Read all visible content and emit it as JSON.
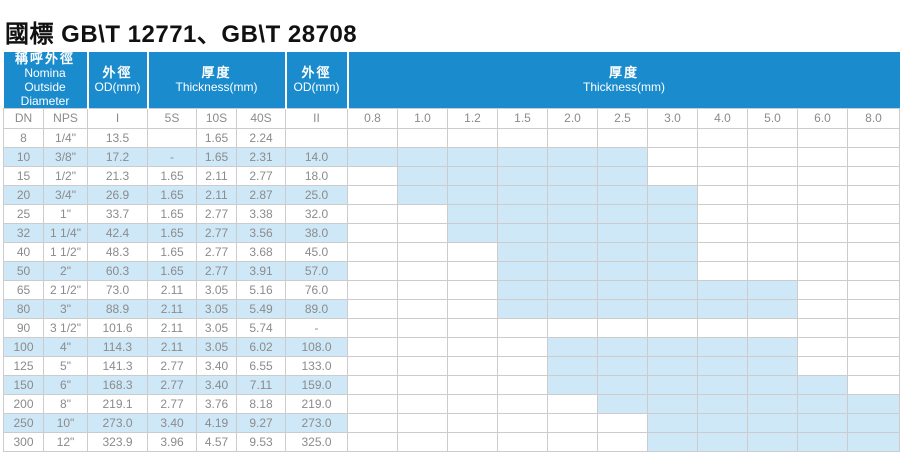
{
  "title": "國標 GB\\T 12771、GB\\T 28708",
  "colors": {
    "header_blue": "#1a8ccd",
    "shade_blue": "#cfe8f7",
    "text_gray": "#8b8b8b",
    "border_gray": "#cccccc"
  },
  "table": {
    "header_groups": [
      {
        "zh": "稱呼外徑",
        "en": "Nomina",
        "en2": "Outside Diameter"
      },
      {
        "zh": "外徑",
        "en": "OD(mm)",
        "en2": ""
      },
      {
        "zh": "厚度",
        "en": "Thickness(mm)",
        "en2": ""
      },
      {
        "zh": "外徑",
        "en": "OD(mm)",
        "en2": ""
      },
      {
        "zh": "厚度",
        "en": "Thickness(mm)",
        "en2": ""
      }
    ],
    "sub_headers": [
      "DN",
      "NPS",
      "I",
      "5S",
      "10S",
      "40S",
      "II"
    ],
    "thickness_headers": [
      "0.8",
      "1.0",
      "1.2",
      "1.5",
      "2.0",
      "2.5",
      "3.0",
      "4.0",
      "5.0",
      "6.0",
      "8.0"
    ],
    "rows": [
      {
        "dn": "8",
        "nps": "1/4\"",
        "od_i": "13.5",
        "s5": "",
        "s10": "1.65",
        "s40": "2.24",
        "od_ii": "",
        "shade": null
      },
      {
        "dn": "10",
        "nps": "3/8\"",
        "od_i": "17.2",
        "s5": "-",
        "s10": "1.65",
        "s40": "2.31",
        "od_ii": "14.0",
        "shade": [
          "0.8",
          "2.5"
        ]
      },
      {
        "dn": "15",
        "nps": "1/2\"",
        "od_i": "21.3",
        "s5": "1.65",
        "s10": "2.11",
        "s40": "2.77",
        "od_ii": "18.0",
        "shade": [
          "1.0",
          "2.5"
        ]
      },
      {
        "dn": "20",
        "nps": "3/4\"",
        "od_i": "26.9",
        "s5": "1.65",
        "s10": "2.11",
        "s40": "2.87",
        "od_ii": "25.0",
        "shade": [
          "1.0",
          "3.0"
        ]
      },
      {
        "dn": "25",
        "nps": "1\"",
        "od_i": "33.7",
        "s5": "1.65",
        "s10": "2.77",
        "s40": "3.38",
        "od_ii": "32.0",
        "shade": [
          "1.2",
          "3.0"
        ]
      },
      {
        "dn": "32",
        "nps": "1 1/4\"",
        "od_i": "42.4",
        "s5": "1.65",
        "s10": "2.77",
        "s40": "3.56",
        "od_ii": "38.0",
        "shade": [
          "1.2",
          "3.0"
        ]
      },
      {
        "dn": "40",
        "nps": "1 1/2\"",
        "od_i": "48.3",
        "s5": "1.65",
        "s10": "2.77",
        "s40": "3.68",
        "od_ii": "45.0",
        "shade": [
          "1.5",
          "3.0"
        ]
      },
      {
        "dn": "50",
        "nps": "2\"",
        "od_i": "60.3",
        "s5": "1.65",
        "s10": "2.77",
        "s40": "3.91",
        "od_ii": "57.0",
        "shade": [
          "1.5",
          "3.0"
        ]
      },
      {
        "dn": "65",
        "nps": "2 1/2\"",
        "od_i": "73.0",
        "s5": "2.11",
        "s10": "3.05",
        "s40": "5.16",
        "od_ii": "76.0",
        "shade": [
          "1.5",
          "5.0"
        ]
      },
      {
        "dn": "80",
        "nps": "3\"",
        "od_i": "88.9",
        "s5": "2.11",
        "s10": "3.05",
        "s40": "5.49",
        "od_ii": "89.0",
        "shade": [
          "1.5",
          "5.0"
        ]
      },
      {
        "dn": "90",
        "nps": "3 1/2\"",
        "od_i": "101.6",
        "s5": "2.11",
        "s10": "3.05",
        "s40": "5.74",
        "od_ii": "-",
        "shade": null
      },
      {
        "dn": "100",
        "nps": "4\"",
        "od_i": "114.3",
        "s5": "2.11",
        "s10": "3.05",
        "s40": "6.02",
        "od_ii": "108.0",
        "shade": [
          "2.0",
          "5.0"
        ]
      },
      {
        "dn": "125",
        "nps": "5\"",
        "od_i": "141.3",
        "s5": "2.77",
        "s10": "3.40",
        "s40": "6.55",
        "od_ii": "133.0",
        "shade": [
          "2.0",
          "5.0"
        ]
      },
      {
        "dn": "150",
        "nps": "6\"",
        "od_i": "168.3",
        "s5": "2.77",
        "s10": "3.40",
        "s40": "7.11",
        "od_ii": "159.0",
        "shade": [
          "2.0",
          "6.0"
        ]
      },
      {
        "dn": "200",
        "nps": "8\"",
        "od_i": "219.1",
        "s5": "2.77",
        "s10": "3.76",
        "s40": "8.18",
        "od_ii": "219.0",
        "shade": [
          "2.5",
          "8.0"
        ]
      },
      {
        "dn": "250",
        "nps": "10\"",
        "od_i": "273.0",
        "s5": "3.40",
        "s10": "4.19",
        "s40": "9.27",
        "od_ii": "273.0",
        "shade": [
          "3.0",
          "8.0"
        ]
      },
      {
        "dn": "300",
        "nps": "12\"",
        "od_i": "323.9",
        "s5": "3.96",
        "s10": "4.57",
        "s40": "9.53",
        "od_ii": "325.0",
        "shade": [
          "3.0",
          "8.0"
        ]
      }
    ]
  }
}
